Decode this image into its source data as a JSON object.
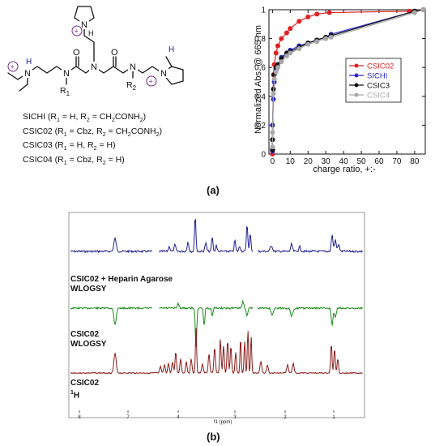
{
  "panel_a": {
    "label": "(a)",
    "structure": {
      "r1": "R",
      "r1_sub": "1",
      "r2": "R",
      "r2_sub": "2",
      "compounds": [
        {
          "name": "SICHI",
          "rest": " (R",
          "a": "1",
          "b": " = H, R",
          "c": "2",
          "d": " = CH",
          "e": "2",
          "f": "CONH",
          "g": "2",
          "h": ")"
        },
        {
          "name": "CSIC02",
          "rest": " (R",
          "a": "1",
          "b": " = Cbz, R",
          "c": "2",
          "d": " = CH",
          "e": "2",
          "f": "CONH",
          "g": "2",
          "h": ")"
        },
        {
          "name": "CSIC03",
          "rest": " (R",
          "a": "1",
          "b": " = H, R",
          "c": "2",
          "d": " = H)",
          "e": "",
          "f": "",
          "g": "",
          "h": ""
        },
        {
          "name": "CSIC04",
          "rest": " (R",
          "a": "1",
          "b": " = Cbz, R",
          "c": "2",
          "d": " = H)",
          "e": "",
          "f": "",
          "g": "",
          "h": ""
        }
      ]
    }
  },
  "panel_b": {
    "label": "(b)",
    "traces": [
      {
        "line1": "CSIC02 + Heparin Agarose",
        "line2": "WLOGSY",
        "color": "#1f1f8f"
      },
      {
        "line1": "CSIC02",
        "line2": "WLOGSY",
        "color": "#1a8c1a"
      },
      {
        "line1": "CSIC02",
        "line2": "H",
        "sup": "1",
        "color": "#8b1a1a"
      }
    ],
    "axis_ticks": [
      "8",
      "7",
      "4",
      "3",
      "2",
      "1"
    ],
    "axis_label": "f1 (ppm)"
  },
  "chart_data": {
    "type": "line",
    "xlabel": "charge ratio, +:-",
    "ylabel": "Normalized Abs. @ 665 nm",
    "xlim": [
      -2,
      86
    ],
    "ylim": [
      0,
      1
    ],
    "xticks": [
      0,
      10,
      20,
      30,
      40,
      50,
      60,
      70,
      80
    ],
    "yticks": [
      0,
      0.2,
      0.4,
      0.6,
      0.8,
      1
    ],
    "grid": false,
    "legend_position": "right-middle",
    "series": [
      {
        "name": "CSIC02",
        "color": "#e02020",
        "x": [
          0,
          0,
          0.5,
          1,
          2,
          3,
          5,
          8,
          10,
          15,
          20,
          25,
          32,
          77,
          85
        ],
        "y": [
          0.0,
          0.03,
          0.55,
          0.62,
          0.7,
          0.75,
          0.8,
          0.84,
          0.87,
          0.92,
          0.95,
          0.97,
          0.98,
          0.99,
          1.0
        ]
      },
      {
        "name": "SICHI",
        "color": "#2a2acc",
        "x": [
          0,
          0,
          0.5,
          1,
          2,
          3,
          5,
          10,
          15,
          20,
          25,
          30,
          33,
          80,
          85
        ],
        "y": [
          0.02,
          0.2,
          0.38,
          0.5,
          0.58,
          0.62,
          0.67,
          0.72,
          0.75,
          0.77,
          0.79,
          0.81,
          0.83,
          0.99,
          1.0
        ]
      },
      {
        "name": "CSIC3",
        "color": "#111111",
        "x": [
          0,
          0,
          0.5,
          1,
          2,
          3,
          5,
          8,
          10,
          15,
          20,
          25,
          30,
          33,
          80,
          85
        ],
        "y": [
          0.03,
          0.1,
          0.45,
          0.55,
          0.6,
          0.62,
          0.66,
          0.7,
          0.71,
          0.74,
          0.77,
          0.79,
          0.81,
          0.82,
          0.99,
          1.0
        ]
      },
      {
        "name": "CSIC4",
        "color": "#a8a8a8",
        "x": [
          0,
          0,
          0.5,
          1,
          2,
          3,
          5,
          8,
          10,
          15,
          20,
          25,
          30,
          33,
          80,
          85
        ],
        "y": [
          0.05,
          0.15,
          0.42,
          0.52,
          0.57,
          0.6,
          0.64,
          0.68,
          0.7,
          0.73,
          0.76,
          0.78,
          0.8,
          0.81,
          0.98,
          1.0
        ]
      }
    ]
  }
}
